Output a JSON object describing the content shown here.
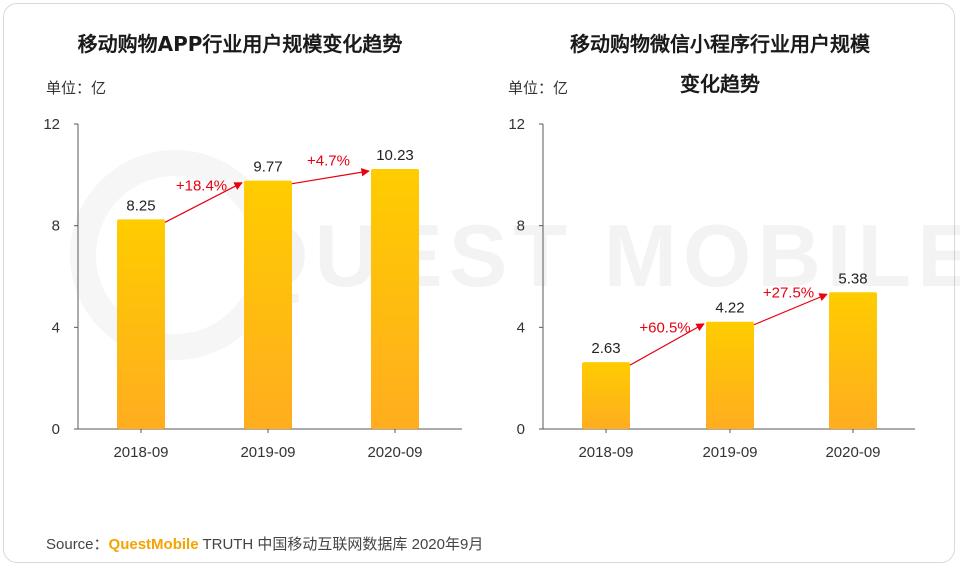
{
  "source": {
    "prefix": "Source：",
    "brand": "QuestMobile",
    "suffix": " TRUTH 中国移动互联网数据库 2020年9月"
  },
  "watermark_text": "QUEST MOBILE",
  "colors": {
    "bar_top": "#ffcc00",
    "bar_bottom": "#ffad1f",
    "growth": "#e60012",
    "axis": "#595959"
  },
  "chart_data": [
    {
      "type": "bar",
      "title_lines": [
        "移动购物APP行业用户规模变化趋势"
      ],
      "unit": "单位：亿",
      "categories": [
        "2018-09",
        "2019-09",
        "2020-09"
      ],
      "values": [
        8.25,
        9.77,
        10.23
      ],
      "value_labels": [
        "8.25",
        "9.77",
        "10.23"
      ],
      "growth": [
        "+18.4%",
        "+4.7%"
      ],
      "yticks": [
        "0",
        "4",
        "8",
        "12"
      ],
      "ylim": [
        0,
        12
      ]
    },
    {
      "type": "bar",
      "title_lines": [
        "移动购物微信小程序行业用户规模",
        "变化趋势"
      ],
      "unit": "单位：亿",
      "categories": [
        "2018-09",
        "2019-09",
        "2020-09"
      ],
      "values": [
        2.63,
        4.22,
        5.38
      ],
      "value_labels": [
        "2.63",
        "4.22",
        "5.38"
      ],
      "growth": [
        "+60.5%",
        "+27.5%"
      ],
      "yticks": [
        "0",
        "4",
        "8",
        "12"
      ],
      "ylim": [
        0,
        12
      ]
    }
  ]
}
